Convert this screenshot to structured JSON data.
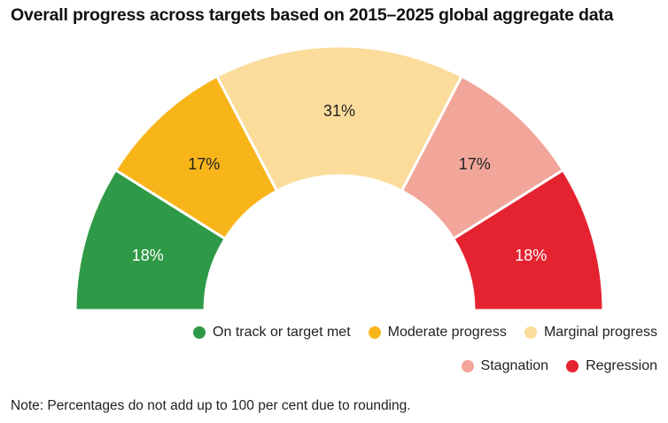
{
  "chart_data": {
    "type": "pie",
    "subtype": "half-donut gauge",
    "title": "Overall progress across targets based on 2015–2025 global aggregate data",
    "categories": [
      "On track or target met",
      "Moderate progress",
      "Marginal progress",
      "Stagnation",
      "Regression"
    ],
    "values": [
      18,
      17,
      31,
      17,
      18
    ],
    "labels": [
      "18%",
      "17%",
      "31%",
      "17%",
      "18%"
    ],
    "colors": [
      "#2e9a47",
      "#f8b51a",
      "#fbdc9b",
      "#f2a69a",
      "#e52330"
    ],
    "label_colors": [
      "#ffffff",
      "#222222",
      "#222222",
      "#222222",
      "#ffffff"
    ],
    "legend_position": "bottom-right",
    "note": "Note: Percentages do not add up to 100 per cent due to rounding."
  }
}
